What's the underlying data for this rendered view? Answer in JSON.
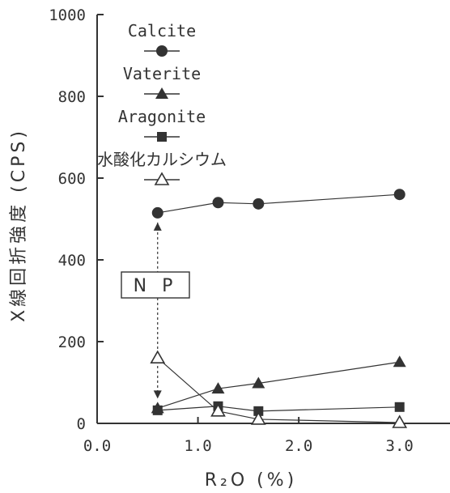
{
  "chart_data": {
    "type": "line",
    "xlabel": "R₂O (%)",
    "ylabel": "X線回折強度 (CPS)",
    "xlim": [
      0.0,
      3.5
    ],
    "ylim": [
      0,
      1000
    ],
    "x_ticks": [
      0.0,
      1.0,
      2.0,
      3.0
    ],
    "x_tick_labels": [
      "0.0",
      "1.0",
      "2.0",
      "3.0"
    ],
    "y_ticks": [
      0,
      200,
      400,
      600,
      800,
      1000
    ],
    "y_tick_labels": [
      "0",
      "200",
      "400",
      "600",
      "800",
      "1000"
    ],
    "grid": false,
    "legend_position": "upper-left inside plot",
    "series": [
      {
        "name": "Calcite",
        "marker": "circle-filled",
        "x": [
          0.6,
          1.2,
          1.6,
          3.0
        ],
        "values": [
          515,
          540,
          537,
          560
        ]
      },
      {
        "name": "Vaterite",
        "marker": "triangle-filled",
        "x": [
          0.6,
          1.2,
          1.6,
          3.0
        ],
        "values": [
          37,
          85,
          98,
          150
        ]
      },
      {
        "name": "Aragonite",
        "marker": "square-filled",
        "x": [
          0.6,
          1.2,
          1.6,
          3.0
        ],
        "values": [
          32,
          42,
          30,
          40
        ]
      },
      {
        "name": "水酸化カルシウム",
        "marker": "triangle-open",
        "x": [
          0.6,
          1.2,
          1.6,
          3.0
        ],
        "values": [
          160,
          30,
          10,
          2
        ]
      }
    ],
    "annotations": [
      {
        "text": "N P",
        "x": 0.6,
        "note_arrow_from_y": 515,
        "note_arrow_to_y": 37
      }
    ],
    "colors": {
      "ink": "#333333",
      "background": "#ffffff"
    }
  }
}
